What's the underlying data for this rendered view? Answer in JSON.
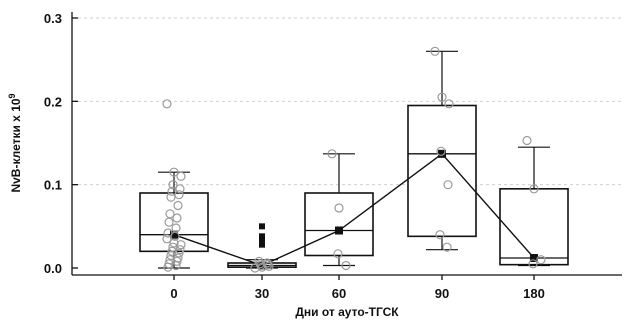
{
  "chart_data": {
    "type": "box",
    "title": "",
    "xlabel": "Дни от ауто-ТГСК",
    "ylabel": "NvB-клетки х 10",
    "ylabel_exponent": "9",
    "ylim": [
      -0.01,
      0.31
    ],
    "yticks": [
      0.0,
      0.1,
      0.2,
      0.3
    ],
    "ytick_labels": [
      "0.0",
      "0.1",
      "0.2",
      "0.3"
    ],
    "grid": "horizontal dashed",
    "categories": [
      "0",
      "30",
      "60",
      "90",
      "180"
    ],
    "boxes": [
      {
        "category": "0",
        "whisker_low": 0.0,
        "q1": 0.02,
        "median": 0.04,
        "q3": 0.09,
        "whisker_high": 0.115,
        "mean": 0.04
      },
      {
        "category": "30",
        "whisker_low": 0.0,
        "q1": 0.001,
        "median": 0.003,
        "q3": 0.006,
        "whisker_high": 0.01,
        "mean": 0.003
      },
      {
        "category": "60",
        "whisker_low": 0.003,
        "q1": 0.015,
        "median": 0.045,
        "q3": 0.09,
        "whisker_high": 0.137,
        "mean": 0.045
      },
      {
        "category": "90",
        "whisker_low": 0.022,
        "q1": 0.038,
        "median": 0.137,
        "q3": 0.195,
        "whisker_high": 0.26,
        "mean": 0.137
      },
      {
        "category": "180",
        "whisker_low": 0.003,
        "q1": 0.004,
        "median": 0.012,
        "q3": 0.095,
        "whisker_high": 0.145,
        "mean": 0.012
      }
    ],
    "points": [
      {
        "category": "0",
        "values": [
          0.197,
          0.115,
          0.11,
          0.1,
          0.095,
          0.092,
          0.088,
          0.085,
          0.075,
          0.065,
          0.06,
          0.055,
          0.048,
          0.042,
          0.038,
          0.035,
          0.03,
          0.028,
          0.025,
          0.022,
          0.02,
          0.018,
          0.015,
          0.012,
          0.01,
          0.008,
          0.005,
          0.003,
          0.001
        ]
      },
      {
        "category": "30",
        "values": [
          0.0,
          0.001,
          0.002,
          0.003,
          0.004,
          0.005,
          0.006,
          0.008
        ]
      },
      {
        "category": "60",
        "values": [
          0.137,
          0.072,
          0.003,
          0.017
        ]
      },
      {
        "category": "90",
        "values": [
          0.26,
          0.205,
          0.197,
          0.14,
          0.1,
          0.04,
          0.025
        ]
      },
      {
        "category": "180",
        "values": [
          0.153,
          0.095,
          0.01,
          0.005
        ]
      }
    ],
    "outliers": [
      {
        "category": "30",
        "values": [
          0.05,
          0.038,
          0.032,
          0.028
        ]
      }
    ],
    "mean_line": {
      "categories": [
        "0",
        "30",
        "60",
        "90",
        "180"
      ],
      "values": [
        0.04,
        0.003,
        0.045,
        0.137,
        0.012
      ]
    }
  }
}
